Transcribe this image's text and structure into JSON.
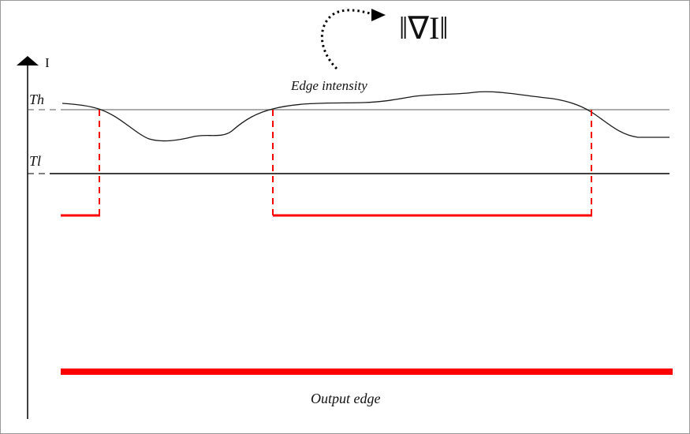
{
  "diagram": {
    "gradient_label": "‖∇I‖",
    "y_axis_label": "I",
    "curve_label": "Edge intensity",
    "high_threshold_label": "Th",
    "low_threshold_label": "Tl",
    "output_label": "Output edge",
    "colors": {
      "curve": "#1a1a1a",
      "threshold_line": "#000000",
      "high_threshold_line": "#777777",
      "edge_signal": "#ff0000",
      "axis": "#000000"
    }
  }
}
